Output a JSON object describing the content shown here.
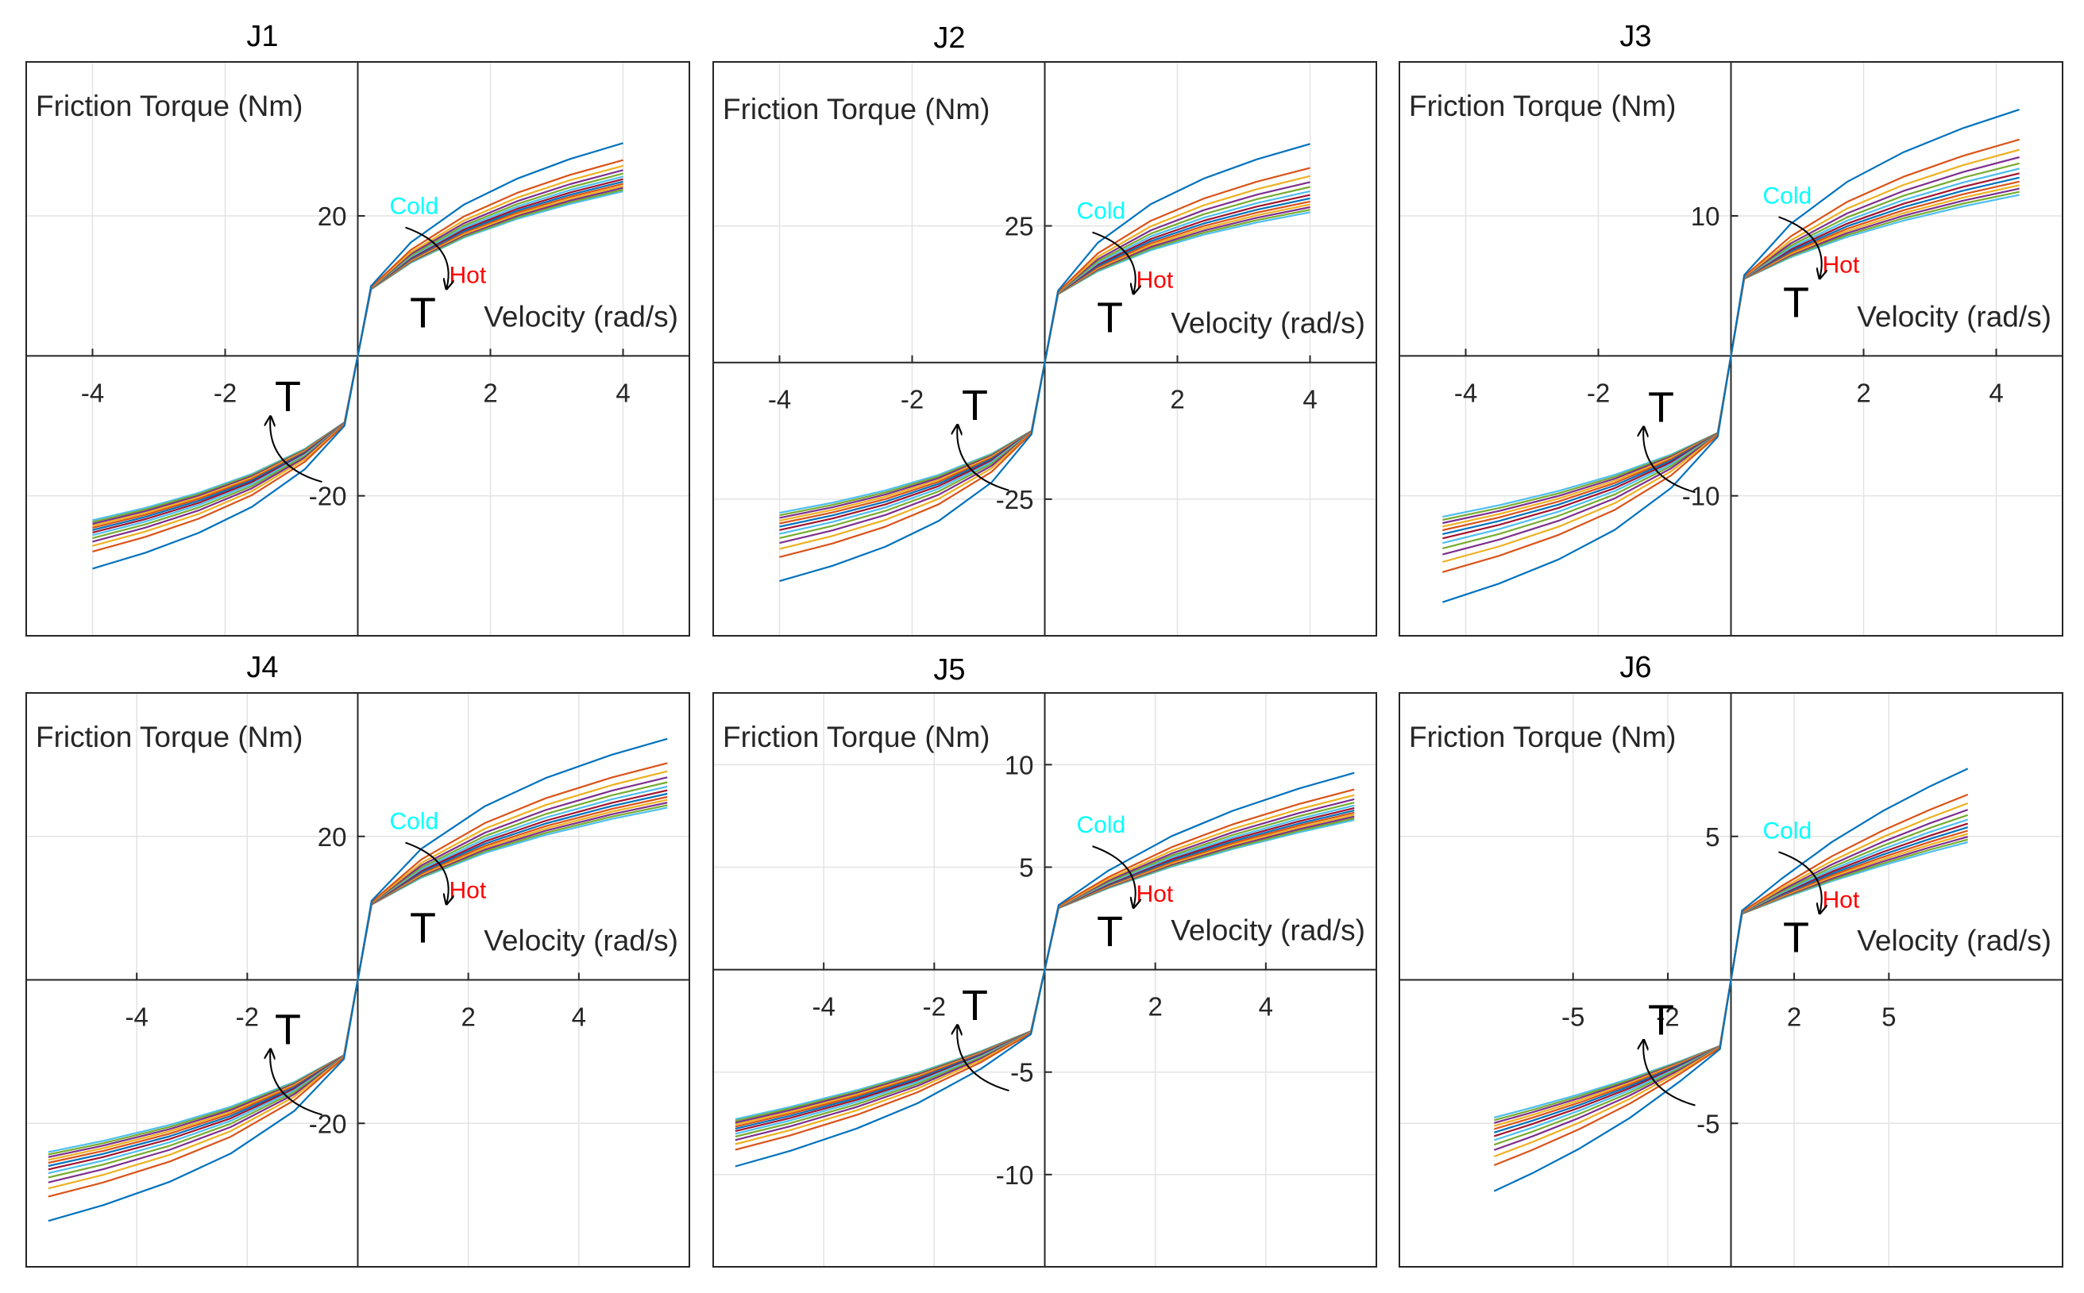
{
  "figure": {
    "panel_count": 6,
    "series_per_panel": 13
  },
  "series_colors": [
    "#0072BD",
    "#D95319",
    "#EDB120",
    "#7E2F8E",
    "#77AC30",
    "#4DBEEE",
    "#A2142F",
    "#0072BD",
    "#D95319",
    "#EDB120",
    "#7E2F8E",
    "#77AC30",
    "#4DBEEE"
  ],
  "annotation_colors": {
    "cold": "#00FFFF",
    "hot": "#FF0000",
    "arrow": "#000000"
  },
  "chart_data": [
    {
      "id": "J1",
      "type": "line",
      "title": "J1",
      "xlabel": "Velocity (rad/s)",
      "ylabel": "Friction Torque (Nm)",
      "xlim": [
        -5.0,
        5.0
      ],
      "ylim": [
        -40,
        42
      ],
      "xticks": [
        -4,
        -2,
        2,
        4
      ],
      "xtick_labels": [
        "-4",
        "-2",
        "2",
        "4"
      ],
      "yticks": [
        20,
        -20
      ],
      "ytick_labels": [
        "20",
        "-20"
      ],
      "grid_x": [
        -4,
        -2,
        2,
        4
      ],
      "grid_y": [
        -20,
        20
      ],
      "x": [
        -4.0,
        -3.2,
        -2.4,
        -1.6,
        -0.8,
        -0.2,
        0,
        0.2,
        0.8,
        1.6,
        2.4,
        3.2,
        4.0
      ],
      "model": {
        "yc": 9.5,
        "yt": 23.5,
        "ac": 1.6,
        "at": 0.9
      },
      "labels": {
        "cold": "Cold",
        "hot": "Hot",
        "temperature_pos": "T",
        "temperature_neg": "T"
      }
    },
    {
      "id": "J2",
      "type": "line",
      "title": "J2",
      "xlabel": "Velocity (rad/s)",
      "ylabel": "Friction Torque (Nm)",
      "xlim": [
        -5.0,
        5.0
      ],
      "ylim": [
        -50,
        55
      ],
      "xticks": [
        -4,
        -2,
        2,
        4
      ],
      "xtick_labels": [
        "-4",
        "-2",
        "2",
        "4"
      ],
      "yticks": [
        25,
        -25
      ],
      "ytick_labels": [
        "25",
        "-25"
      ],
      "grid_x": [
        -4,
        -2,
        2,
        4
      ],
      "grid_y": [
        -25,
        25
      ],
      "x": [
        -4.0,
        -3.2,
        -2.4,
        -1.6,
        -0.8,
        -0.2,
        0,
        0.2,
        0.8,
        1.6,
        2.4,
        3.2,
        4.0
      ],
      "model": {
        "yc": 12.5,
        "yt": 27.5,
        "ac": 2.0,
        "at": 1.0
      },
      "labels": {
        "cold": "Cold",
        "hot": "Hot",
        "temperature_pos": "T",
        "temperature_neg": "T"
      }
    },
    {
      "id": "J3",
      "type": "line",
      "title": "J3",
      "xlabel": "Velocity (rad/s)",
      "ylabel": "Friction Torque (Nm)",
      "xlim": [
        -5.0,
        5.0
      ],
      "ylim": [
        -20,
        21
      ],
      "xticks": [
        -4,
        -2,
        2,
        4
      ],
      "xtick_labels": [
        "-4",
        "-2",
        "2",
        "4"
      ],
      "yticks": [
        10,
        -10
      ],
      "ytick_labels": [
        "10",
        "-10"
      ],
      "grid_x": [
        -4,
        -2,
        2,
        4
      ],
      "grid_y": [
        -10,
        10
      ],
      "x": [
        -4.35,
        -3.5,
        -2.6,
        -1.75,
        -0.9,
        -0.2,
        0,
        0.2,
        0.9,
        1.75,
        2.6,
        3.5,
        4.35
      ],
      "model": {
        "yc": 5.5,
        "yt": 11.5,
        "ac": 1.4,
        "at": 0.6
      },
      "labels": {
        "cold": "Cold",
        "hot": "Hot",
        "temperature_pos": "T",
        "temperature_neg": "T"
      }
    },
    {
      "id": "J4",
      "type": "line",
      "title": "J4",
      "xlabel": "Velocity (rad/s)",
      "ylabel": "Friction Torque (Nm)",
      "xlim": [
        -6.0,
        6.0
      ],
      "ylim": [
        -40,
        40
      ],
      "xticks": [
        -4,
        -2,
        2,
        4
      ],
      "xtick_labels": [
        "-4",
        "-2",
        "2",
        "4"
      ],
      "yticks": [
        20,
        -20
      ],
      "ytick_labels": [
        "20",
        "-20"
      ],
      "grid_x": [
        -4,
        -2,
        2,
        4
      ],
      "grid_y": [
        -20,
        20
      ],
      "x": [
        -5.6,
        -4.6,
        -3.4,
        -2.3,
        -1.15,
        -0.25,
        0,
        0.25,
        1.15,
        2.3,
        3.4,
        4.6,
        5.6
      ],
      "model": {
        "yc": 10.5,
        "yt": 24.0,
        "ac": 1.6,
        "at": 0.8
      },
      "labels": {
        "cold": "Cold",
        "hot": "Hot",
        "temperature_pos": "T",
        "temperature_neg": "T"
      }
    },
    {
      "id": "J5",
      "type": "line",
      "title": "J5",
      "xlabel": "Velocity (rad/s)",
      "ylabel": "Friction Torque (Nm)",
      "xlim": [
        -6.0,
        6.0
      ],
      "ylim": [
        -14.5,
        13.5
      ],
      "xticks": [
        -4,
        -2,
        2,
        4
      ],
      "xtick_labels": [
        "-4",
        "-2",
        "2",
        "4"
      ],
      "yticks": [
        10,
        5,
        -5,
        -10
      ],
      "ytick_labels": [
        "10",
        "5",
        "-5",
        "-10"
      ],
      "grid_x": [
        -4,
        -2,
        2,
        4
      ],
      "grid_y": [
        -10,
        -5,
        5,
        10
      ],
      "x": [
        -5.6,
        -4.6,
        -3.4,
        -2.3,
        -1.15,
        -0.25,
        0,
        0.25,
        1.15,
        2.3,
        3.4,
        4.6,
        5.6
      ],
      "model": {
        "yc": 3.0,
        "yt": 7.3,
        "ac": 0.8,
        "at": 0.35
      },
      "labels": {
        "cold": "Cold",
        "hot": "Hot",
        "temperature_pos": "T",
        "temperature_neg": "T"
      }
    },
    {
      "id": "J6",
      "type": "line",
      "title": "J6",
      "xlabel": "Velocity (rad/s)",
      "ylabel": "Friction Torque (Nm)",
      "xlim": [
        -10.5,
        10.5
      ],
      "ylim": [
        -10,
        10
      ],
      "xticks": [
        -5,
        -2,
        2,
        5
      ],
      "xtick_labels": [
        "-5",
        "-2",
        "2",
        "5"
      ],
      "yticks": [
        5,
        -5
      ],
      "ytick_labels": [
        "5",
        "-5"
      ],
      "grid_x": [
        -5,
        -2,
        2,
        5
      ],
      "grid_y": [
        -5,
        5
      ],
      "x": [
        -7.5,
        -6.3,
        -4.8,
        -3.2,
        -1.6,
        -0.35,
        0,
        0.35,
        1.6,
        3.2,
        4.8,
        6.3,
        7.5
      ],
      "model": {
        "yc": 2.3,
        "yt": 4.8,
        "ac": 0.4,
        "at": 0.2
      },
      "labels": {
        "cold": "Cold",
        "hot": "Hot",
        "temperature_pos": "T",
        "temperature_neg": "T"
      }
    }
  ]
}
